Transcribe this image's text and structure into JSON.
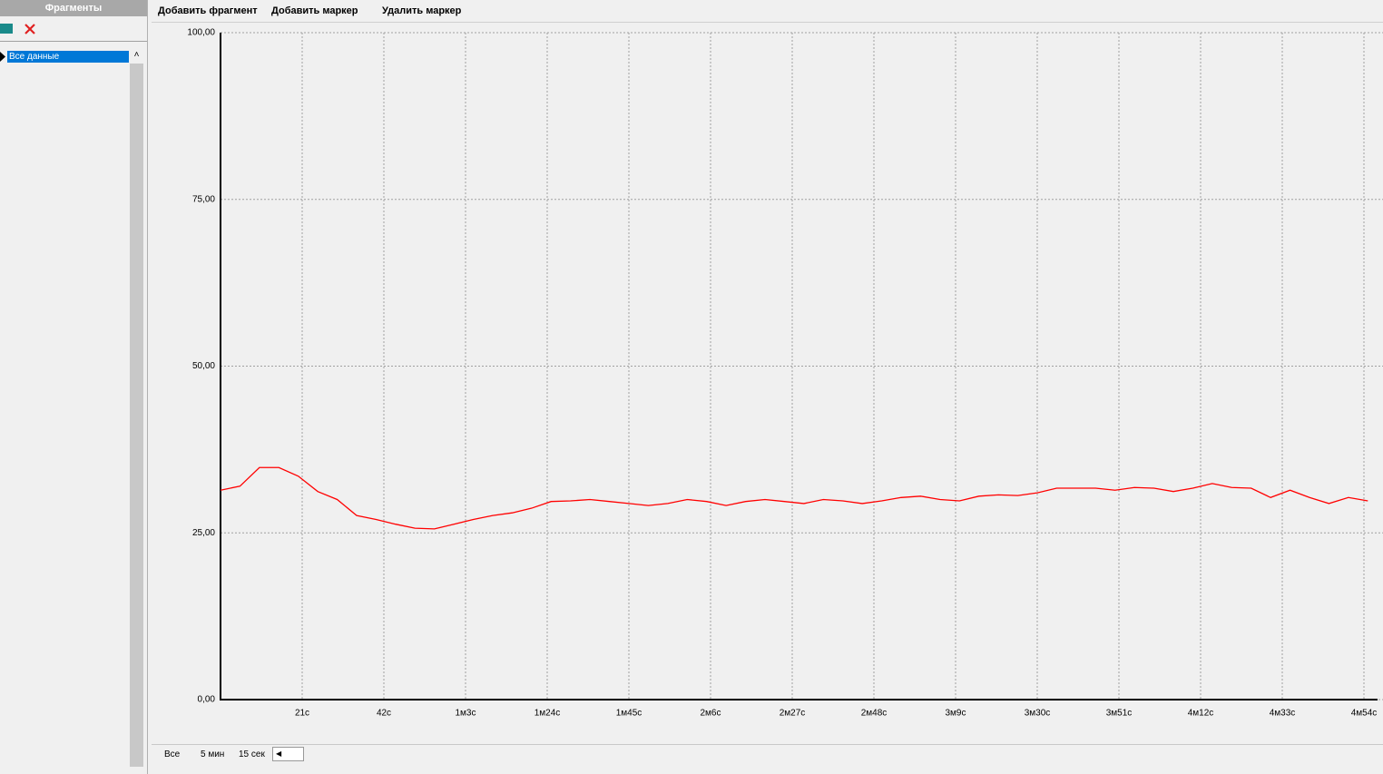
{
  "sidebar": {
    "title": "Фрагменты",
    "items": [
      "Все данные"
    ]
  },
  "toolbar": [
    "Добавить фрагмент",
    "Добавить маркер",
    "Удалить маркер"
  ],
  "footer": [
    "Все",
    "5 мин",
    "15 сек"
  ],
  "chart_data": {
    "type": "line",
    "x": [
      0,
      5,
      10,
      15,
      20,
      25,
      30,
      35,
      40,
      45,
      50,
      55,
      60,
      65,
      70,
      75,
      80,
      85,
      90,
      95,
      100,
      105,
      110,
      115,
      120,
      125,
      130,
      135,
      140,
      145,
      150,
      155,
      160,
      165,
      170,
      175,
      180,
      185,
      190,
      195,
      200,
      205,
      210,
      215,
      220,
      225,
      230,
      235,
      240,
      245,
      250,
      255,
      260,
      265,
      270,
      275,
      280,
      285,
      290,
      295
    ],
    "values": [
      31.4,
      32,
      34.8,
      34.8,
      33.5,
      31.2,
      30,
      27.6,
      27,
      26.3,
      25.7,
      25.6,
      26.3,
      27,
      27.6,
      28,
      28.7,
      29.7,
      29.8,
      30,
      29.7,
      29.4,
      29.1,
      29.4,
      30,
      29.7,
      29.1,
      29.7,
      30,
      29.7,
      29.4,
      30,
      29.8,
      29.4,
      29.8,
      30.3,
      30.5,
      30,
      29.8,
      30.5,
      30.7,
      30.6,
      31,
      31.7,
      31.7,
      31.7,
      31.4,
      31.8,
      31.7,
      31.2,
      31.7,
      32.4,
      31.8,
      31.7,
      30.3,
      31.4,
      30.3,
      29.4,
      30.3,
      29.8
    ],
    "color": "#ff0000",
    "xlim": [
      0,
      297.5
    ],
    "xticks": [
      {
        "value": 21,
        "label": "21с"
      },
      {
        "value": 42,
        "label": "42с"
      },
      {
        "value": 63,
        "label": "1м3с"
      },
      {
        "value": 84,
        "label": "1м24с"
      },
      {
        "value": 105,
        "label": "1м45с"
      },
      {
        "value": 126,
        "label": "2м6с"
      },
      {
        "value": 147,
        "label": "2м27с"
      },
      {
        "value": 168,
        "label": "2м48с"
      },
      {
        "value": 189,
        "label": "3м9с"
      },
      {
        "value": 210,
        "label": "3м30с"
      },
      {
        "value": 231,
        "label": "3м51с"
      },
      {
        "value": 252,
        "label": "4м12с"
      },
      {
        "value": 273,
        "label": "4м33с"
      },
      {
        "value": 294,
        "label": "4м54с"
      }
    ],
    "ylim": [
      0,
      100
    ],
    "yticks": [
      {
        "value": 0,
        "label": "0,00"
      },
      {
        "value": 25,
        "label": "25,00"
      },
      {
        "value": 50,
        "label": "50,00"
      },
      {
        "value": 75,
        "label": "75,00"
      },
      {
        "value": 100,
        "label": "100,00"
      }
    ],
    "grid": true
  }
}
